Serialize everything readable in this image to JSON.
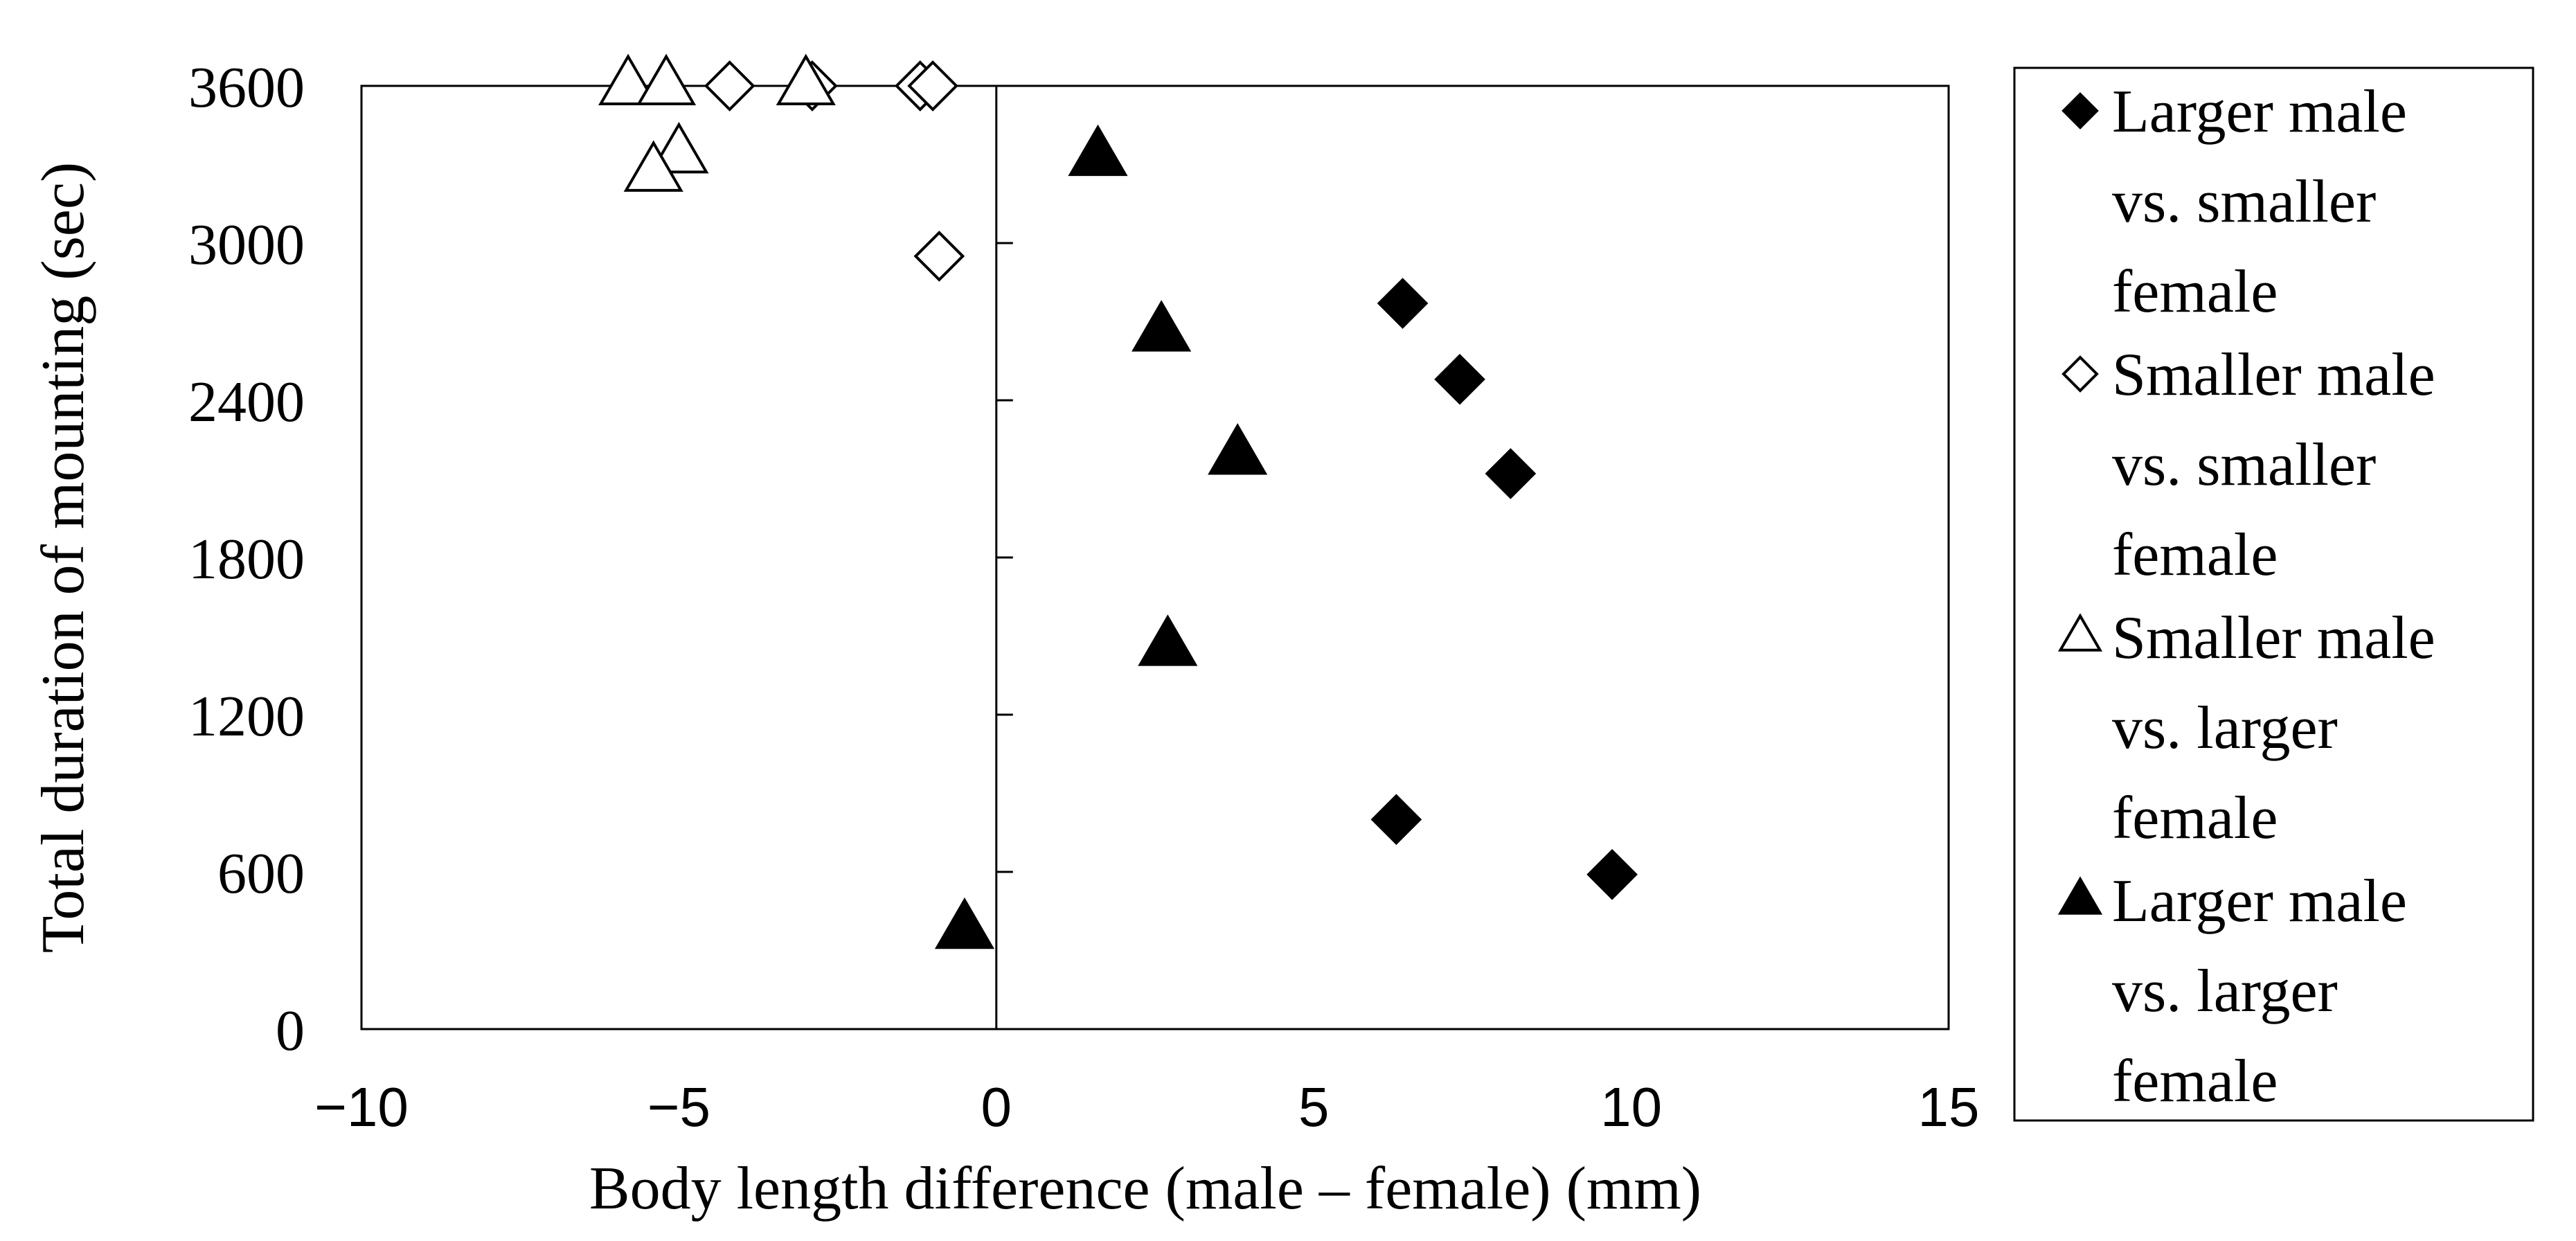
{
  "chart_data": {
    "type": "scatter",
    "title": "",
    "xlabel": "Body length difference (male – female) (mm)",
    "ylabel": "Total duration of mounting (sec)",
    "xlim": [
      -10,
      15
    ],
    "ylim": [
      0,
      3600
    ],
    "x_ticks": [
      -10,
      -5,
      0,
      5,
      10,
      15
    ],
    "x_tick_labels": [
      "−10",
      "−5",
      "0",
      "5",
      "10",
      "15"
    ],
    "y_ticks": [
      0,
      600,
      1200,
      1800,
      2400,
      3000,
      3600
    ],
    "y_tick_labels": [
      "0",
      "600",
      "1200",
      "1800",
      "2400",
      "3000",
      "3600"
    ],
    "grid": false,
    "legend_position": "right",
    "series": [
      {
        "name": "Larger male vs. smaller female",
        "legend_lines": [
          "Larger male",
          "vs. smaller",
          "female"
        ],
        "marker": "diamond",
        "filled": true,
        "points": [
          [
            6.4,
            2770
          ],
          [
            7.3,
            2480
          ],
          [
            8.1,
            2120
          ],
          [
            6.3,
            800
          ],
          [
            9.7,
            590
          ]
        ]
      },
      {
        "name": "Smaller male vs. smaller female",
        "legend_lines": [
          "Smaller male",
          "vs. smaller",
          "female"
        ],
        "marker": "diamond",
        "filled": false,
        "points": [
          [
            -4.2,
            3600
          ],
          [
            -2.9,
            3600
          ],
          [
            -1.2,
            3600
          ],
          [
            -1.0,
            3600
          ],
          [
            -0.9,
            2950
          ]
        ]
      },
      {
        "name": "Smaller male vs. larger female",
        "legend_lines": [
          "Smaller male",
          "vs. larger",
          "female"
        ],
        "marker": "triangle",
        "filled": false,
        "points": [
          [
            -5.8,
            3600
          ],
          [
            -5.2,
            3600
          ],
          [
            -3.0,
            3600
          ],
          [
            -5.0,
            3340
          ],
          [
            -5.4,
            3270
          ]
        ]
      },
      {
        "name": "Larger male vs. larger female",
        "legend_lines": [
          "Larger male",
          "vs. larger",
          "female"
        ],
        "marker": "triangle",
        "filled": true,
        "points": [
          [
            1.6,
            3330
          ],
          [
            2.6,
            2660
          ],
          [
            3.8,
            2190
          ],
          [
            2.7,
            1460
          ],
          [
            -0.5,
            380
          ]
        ]
      }
    ]
  }
}
